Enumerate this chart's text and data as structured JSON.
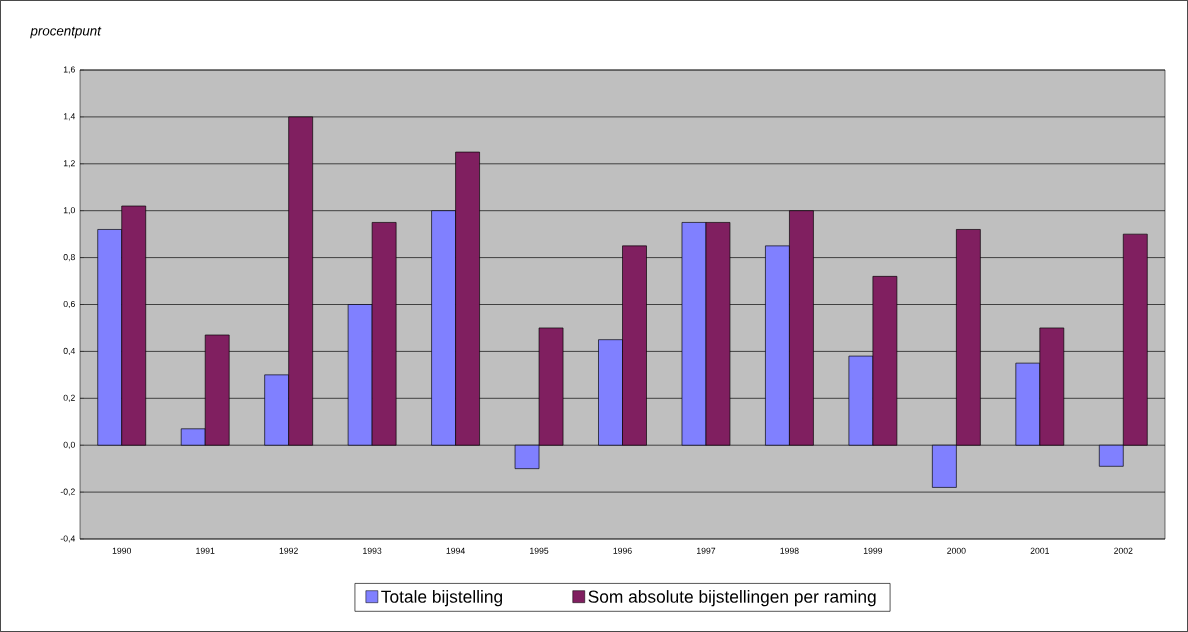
{
  "chart_data": {
    "type": "bar",
    "ylabel": "procentpunt",
    "categories": [
      "1990",
      "1991",
      "1992",
      "1993",
      "1994",
      "1995",
      "1996",
      "1997",
      "1998",
      "1999",
      "2000",
      "2001",
      "2002"
    ],
    "series": [
      {
        "name": "Totale bijstelling",
        "color": "#8080ff",
        "values": [
          0.92,
          0.07,
          0.3,
          0.6,
          1.0,
          -0.1,
          0.45,
          0.95,
          0.85,
          0.38,
          -0.18,
          0.35,
          -0.09
        ]
      },
      {
        "name": "Som absolute bijstellingen per raming",
        "color": "#801f60",
        "values": [
          1.02,
          0.47,
          1.4,
          0.95,
          1.25,
          0.5,
          0.85,
          0.95,
          1.0,
          0.72,
          0.92,
          0.5,
          0.9
        ]
      }
    ],
    "ylim": [
      -0.4,
      1.6
    ],
    "yticks": [
      {
        "value": -0.4,
        "label": "-0,4"
      },
      {
        "value": -0.2,
        "label": "-0,2"
      },
      {
        "value": 0,
        "label": "0,0"
      },
      {
        "value": 0.2,
        "label": "0,2"
      },
      {
        "value": 0.4,
        "label": "0,4"
      },
      {
        "value": 0.6,
        "label": "0,6"
      },
      {
        "value": 0.8,
        "label": "0,8"
      },
      {
        "value": 1.0,
        "label": "1,0"
      },
      {
        "value": 1.2,
        "label": "1,2"
      },
      {
        "value": 1.4,
        "label": "1,4"
      },
      {
        "value": 1.6,
        "label": "1,6"
      }
    ],
    "grid": "y",
    "legend": "bottom"
  }
}
